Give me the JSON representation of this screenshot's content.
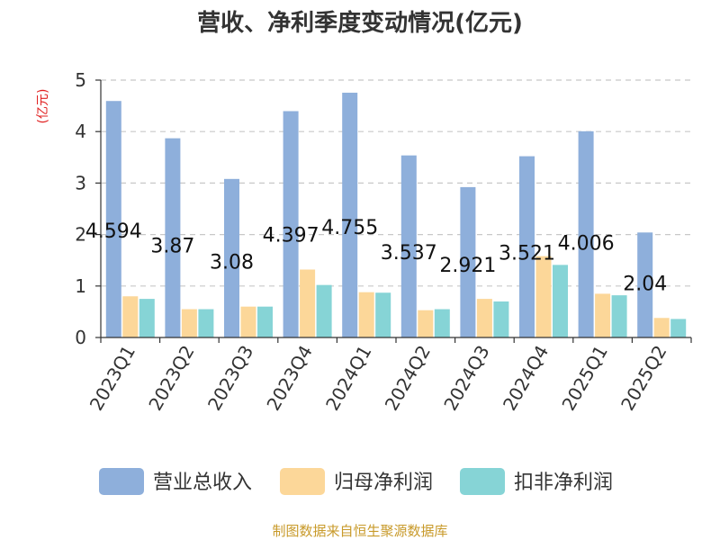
{
  "chart_data": {
    "type": "bar",
    "title": "营收、净利季度变动情况(亿元)",
    "ylabel": "(亿元)",
    "ylim": [
      0,
      5
    ],
    "yticks": [
      0,
      1,
      2,
      3,
      4,
      5
    ],
    "grid": true,
    "legend_position": "bottom",
    "categories": [
      "2023Q1",
      "2023Q2",
      "2023Q3",
      "2023Q4",
      "2024Q1",
      "2024Q2",
      "2024Q3",
      "2024Q4",
      "2025Q1",
      "2025Q2"
    ],
    "series": [
      {
        "name": "营业总收入",
        "color": "#8eafdb",
        "values": [
          4.594,
          3.87,
          3.08,
          4.397,
          4.755,
          3.537,
          2.921,
          3.521,
          4.006,
          2.04
        ],
        "labels": [
          "4.594",
          "3.87",
          "3.08",
          "4.397",
          "4.755",
          "3.537",
          "2.921",
          "3.521",
          "4.006",
          "2.04"
        ]
      },
      {
        "name": "归母净利润",
        "color": "#fcd799",
        "values": [
          0.8,
          0.55,
          0.6,
          1.32,
          0.88,
          0.53,
          0.75,
          1.58,
          0.85,
          0.38
        ]
      },
      {
        "name": "扣非净利润",
        "color": "#86d4d6",
        "values": [
          0.75,
          0.55,
          0.6,
          1.02,
          0.87,
          0.55,
          0.7,
          1.41,
          0.82,
          0.36
        ]
      }
    ],
    "source": "制图数据来自恒生聚源数据库"
  }
}
